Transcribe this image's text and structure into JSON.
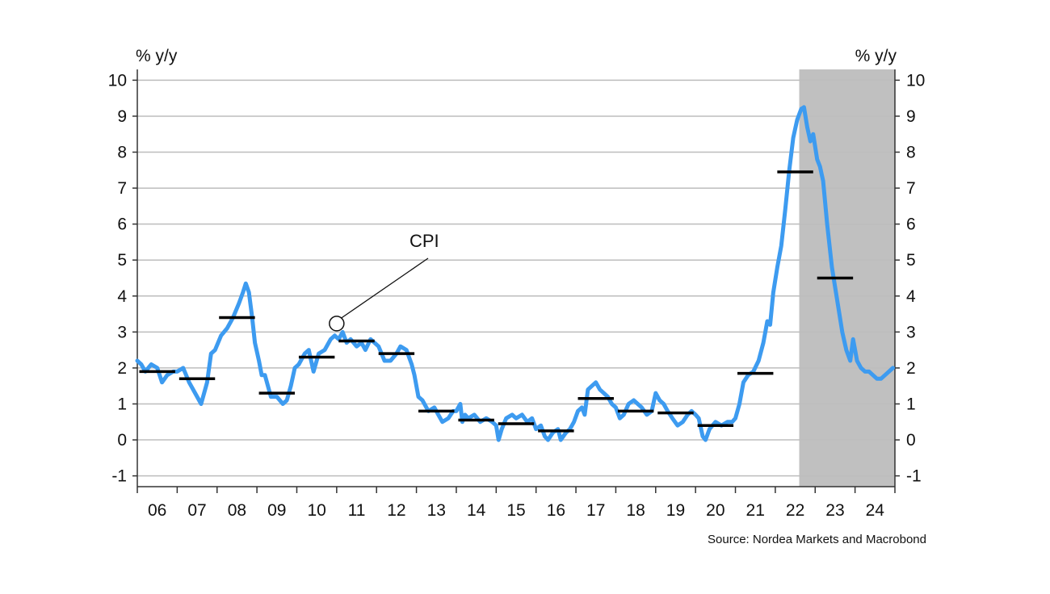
{
  "chart_data": {
    "type": "line",
    "left_axis_label": "% y/y",
    "right_axis_label": "% y/y",
    "source": "Source: Nordea Markets and Macrobond",
    "annotation": "CPI",
    "ylim": [
      -1.3,
      10.3
    ],
    "yticks": [
      -1,
      0,
      1,
      2,
      3,
      4,
      5,
      6,
      7,
      8,
      9,
      10
    ],
    "x_tick_labels": [
      "06",
      "07",
      "08",
      "09",
      "10",
      "11",
      "12",
      "13",
      "14",
      "15",
      "16",
      "17",
      "18",
      "19",
      "20",
      "21",
      "22",
      "23",
      "24"
    ],
    "grid": true,
    "forecast_shading": {
      "from": 2022.6,
      "to": 2025.0,
      "color": "#c0c0c0"
    },
    "line_color": "#3d9bf0",
    "series": [
      {
        "type": "line",
        "points": [
          [
            2006.0,
            2.2
          ],
          [
            2006.1,
            2.1
          ],
          [
            2006.2,
            1.9
          ],
          [
            2006.35,
            2.1
          ],
          [
            2006.5,
            2.0
          ],
          [
            2006.62,
            1.6
          ],
          [
            2006.75,
            1.8
          ],
          [
            2006.9,
            1.9
          ],
          [
            2007.0,
            1.9
          ],
          [
            2007.15,
            2.0
          ],
          [
            2007.3,
            1.6
          ],
          [
            2007.45,
            1.3
          ],
          [
            2007.6,
            1.0
          ],
          [
            2007.75,
            1.6
          ],
          [
            2007.85,
            2.4
          ],
          [
            2007.95,
            2.5
          ],
          [
            2008.1,
            2.9
          ],
          [
            2008.25,
            3.1
          ],
          [
            2008.4,
            3.4
          ],
          [
            2008.55,
            3.8
          ],
          [
            2008.65,
            4.1
          ],
          [
            2008.72,
            4.35
          ],
          [
            2008.8,
            4.1
          ],
          [
            2008.88,
            3.4
          ],
          [
            2008.95,
            2.7
          ],
          [
            2009.05,
            2.2
          ],
          [
            2009.12,
            1.8
          ],
          [
            2009.2,
            1.8
          ],
          [
            2009.35,
            1.2
          ],
          [
            2009.5,
            1.2
          ],
          [
            2009.65,
            1.0
          ],
          [
            2009.75,
            1.1
          ],
          [
            2009.85,
            1.5
          ],
          [
            2009.95,
            2.0
          ],
          [
            2010.05,
            2.1
          ],
          [
            2010.2,
            2.4
          ],
          [
            2010.3,
            2.5
          ],
          [
            2010.42,
            1.9
          ],
          [
            2010.55,
            2.4
          ],
          [
            2010.7,
            2.5
          ],
          [
            2010.85,
            2.8
          ],
          [
            2010.95,
            2.9
          ],
          [
            2011.05,
            2.8
          ],
          [
            2011.15,
            3.0
          ],
          [
            2011.25,
            2.7
          ],
          [
            2011.35,
            2.8
          ],
          [
            2011.5,
            2.6
          ],
          [
            2011.62,
            2.7
          ],
          [
            2011.72,
            2.5
          ],
          [
            2011.85,
            2.8
          ],
          [
            2011.95,
            2.7
          ],
          [
            2012.05,
            2.6
          ],
          [
            2012.2,
            2.2
          ],
          [
            2012.35,
            2.2
          ],
          [
            2012.5,
            2.4
          ],
          [
            2012.6,
            2.6
          ],
          [
            2012.75,
            2.5
          ],
          [
            2012.88,
            2.1
          ],
          [
            2012.95,
            1.8
          ],
          [
            2013.05,
            1.2
          ],
          [
            2013.15,
            1.1
          ],
          [
            2013.3,
            0.8
          ],
          [
            2013.45,
            0.9
          ],
          [
            2013.55,
            0.7
          ],
          [
            2013.65,
            0.5
          ],
          [
            2013.8,
            0.6
          ],
          [
            2013.92,
            0.8
          ],
          [
            2014.0,
            0.8
          ],
          [
            2014.1,
            1.0
          ],
          [
            2014.15,
            0.5
          ],
          [
            2014.22,
            0.7
          ],
          [
            2014.3,
            0.6
          ],
          [
            2014.45,
            0.7
          ],
          [
            2014.6,
            0.5
          ],
          [
            2014.75,
            0.6
          ],
          [
            2014.9,
            0.5
          ],
          [
            2015.0,
            0.4
          ],
          [
            2015.06,
            0.0
          ],
          [
            2015.14,
            0.3
          ],
          [
            2015.25,
            0.6
          ],
          [
            2015.4,
            0.7
          ],
          [
            2015.5,
            0.6
          ],
          [
            2015.65,
            0.7
          ],
          [
            2015.78,
            0.5
          ],
          [
            2015.9,
            0.6
          ],
          [
            2016.0,
            0.3
          ],
          [
            2016.12,
            0.4
          ],
          [
            2016.22,
            0.1
          ],
          [
            2016.3,
            0.0
          ],
          [
            2016.42,
            0.2
          ],
          [
            2016.55,
            0.3
          ],
          [
            2016.62,
            0.0
          ],
          [
            2016.75,
            0.2
          ],
          [
            2016.85,
            0.3
          ],
          [
            2016.95,
            0.5
          ],
          [
            2017.05,
            0.8
          ],
          [
            2017.15,
            0.9
          ],
          [
            2017.22,
            0.7
          ],
          [
            2017.3,
            1.4
          ],
          [
            2017.4,
            1.5
          ],
          [
            2017.5,
            1.6
          ],
          [
            2017.6,
            1.4
          ],
          [
            2017.7,
            1.3
          ],
          [
            2017.8,
            1.2
          ],
          [
            2017.9,
            1.0
          ],
          [
            2018.0,
            0.9
          ],
          [
            2018.1,
            0.6
          ],
          [
            2018.2,
            0.7
          ],
          [
            2018.32,
            1.0
          ],
          [
            2018.45,
            1.1
          ],
          [
            2018.55,
            1.0
          ],
          [
            2018.65,
            0.9
          ],
          [
            2018.78,
            0.7
          ],
          [
            2018.9,
            0.8
          ],
          [
            2019.0,
            1.3
          ],
          [
            2019.1,
            1.1
          ],
          [
            2019.2,
            1.0
          ],
          [
            2019.3,
            0.8
          ],
          [
            2019.42,
            0.6
          ],
          [
            2019.55,
            0.4
          ],
          [
            2019.68,
            0.5
          ],
          [
            2019.8,
            0.7
          ],
          [
            2019.9,
            0.8
          ],
          [
            2020.0,
            0.7
          ],
          [
            2020.08,
            0.6
          ],
          [
            2020.18,
            0.1
          ],
          [
            2020.25,
            0.0
          ],
          [
            2020.35,
            0.3
          ],
          [
            2020.5,
            0.5
          ],
          [
            2020.65,
            0.4
          ],
          [
            2020.8,
            0.5
          ],
          [
            2020.92,
            0.5
          ],
          [
            2021.0,
            0.6
          ],
          [
            2021.1,
            1.0
          ],
          [
            2021.2,
            1.6
          ],
          [
            2021.32,
            1.8
          ],
          [
            2021.45,
            1.9
          ],
          [
            2021.58,
            2.2
          ],
          [
            2021.7,
            2.7
          ],
          [
            2021.8,
            3.3
          ],
          [
            2021.87,
            3.2
          ],
          [
            2021.95,
            4.1
          ],
          [
            2022.05,
            4.8
          ],
          [
            2022.15,
            5.4
          ],
          [
            2022.25,
            6.4
          ],
          [
            2022.35,
            7.5
          ],
          [
            2022.45,
            8.4
          ],
          [
            2022.55,
            8.9
          ],
          [
            2022.65,
            9.2
          ],
          [
            2022.72,
            9.25
          ],
          [
            2022.8,
            8.7
          ],
          [
            2022.88,
            8.3
          ],
          [
            2022.95,
            8.5
          ],
          [
            2023.05,
            7.8
          ],
          [
            2023.12,
            7.6
          ],
          [
            2023.2,
            7.2
          ],
          [
            2023.3,
            6.0
          ],
          [
            2023.42,
            4.8
          ],
          [
            2023.55,
            3.9
          ],
          [
            2023.68,
            3.0
          ],
          [
            2023.78,
            2.5
          ],
          [
            2023.88,
            2.2
          ],
          [
            2023.95,
            2.8
          ],
          [
            2024.05,
            2.2
          ],
          [
            2024.15,
            2.0
          ],
          [
            2024.25,
            1.9
          ],
          [
            2024.35,
            1.9
          ],
          [
            2024.45,
            1.8
          ],
          [
            2024.55,
            1.7
          ],
          [
            2024.65,
            1.7
          ],
          [
            2024.75,
            1.8
          ],
          [
            2024.85,
            1.9
          ],
          [
            2024.95,
            2.0
          ]
        ]
      },
      {
        "type": "step-average",
        "color": "#000000",
        "segments": [
          {
            "from": 2006.05,
            "to": 2006.95,
            "value": 1.9
          },
          {
            "from": 2007.05,
            "to": 2007.95,
            "value": 1.7
          },
          {
            "from": 2008.05,
            "to": 2008.95,
            "value": 3.4
          },
          {
            "from": 2009.05,
            "to": 2009.95,
            "value": 1.3
          },
          {
            "from": 2010.05,
            "to": 2010.95,
            "value": 2.3
          },
          {
            "from": 2011.05,
            "to": 2011.95,
            "value": 2.75
          },
          {
            "from": 2012.05,
            "to": 2012.95,
            "value": 2.4
          },
          {
            "from": 2013.05,
            "to": 2013.95,
            "value": 0.8
          },
          {
            "from": 2014.05,
            "to": 2014.95,
            "value": 0.55
          },
          {
            "from": 2015.05,
            "to": 2015.95,
            "value": 0.45
          },
          {
            "from": 2016.05,
            "to": 2016.95,
            "value": 0.25
          },
          {
            "from": 2017.05,
            "to": 2017.95,
            "value": 1.15
          },
          {
            "from": 2018.05,
            "to": 2018.95,
            "value": 0.8
          },
          {
            "from": 2019.05,
            "to": 2019.95,
            "value": 0.75
          },
          {
            "from": 2020.05,
            "to": 2020.95,
            "value": 0.4
          },
          {
            "from": 2021.05,
            "to": 2021.95,
            "value": 1.85
          },
          {
            "from": 2022.05,
            "to": 2022.95,
            "value": 7.45
          },
          {
            "from": 2023.05,
            "to": 2023.95,
            "value": 4.5
          }
        ]
      }
    ],
    "annotation_target": [
      2011.0,
      3.1
    ]
  }
}
